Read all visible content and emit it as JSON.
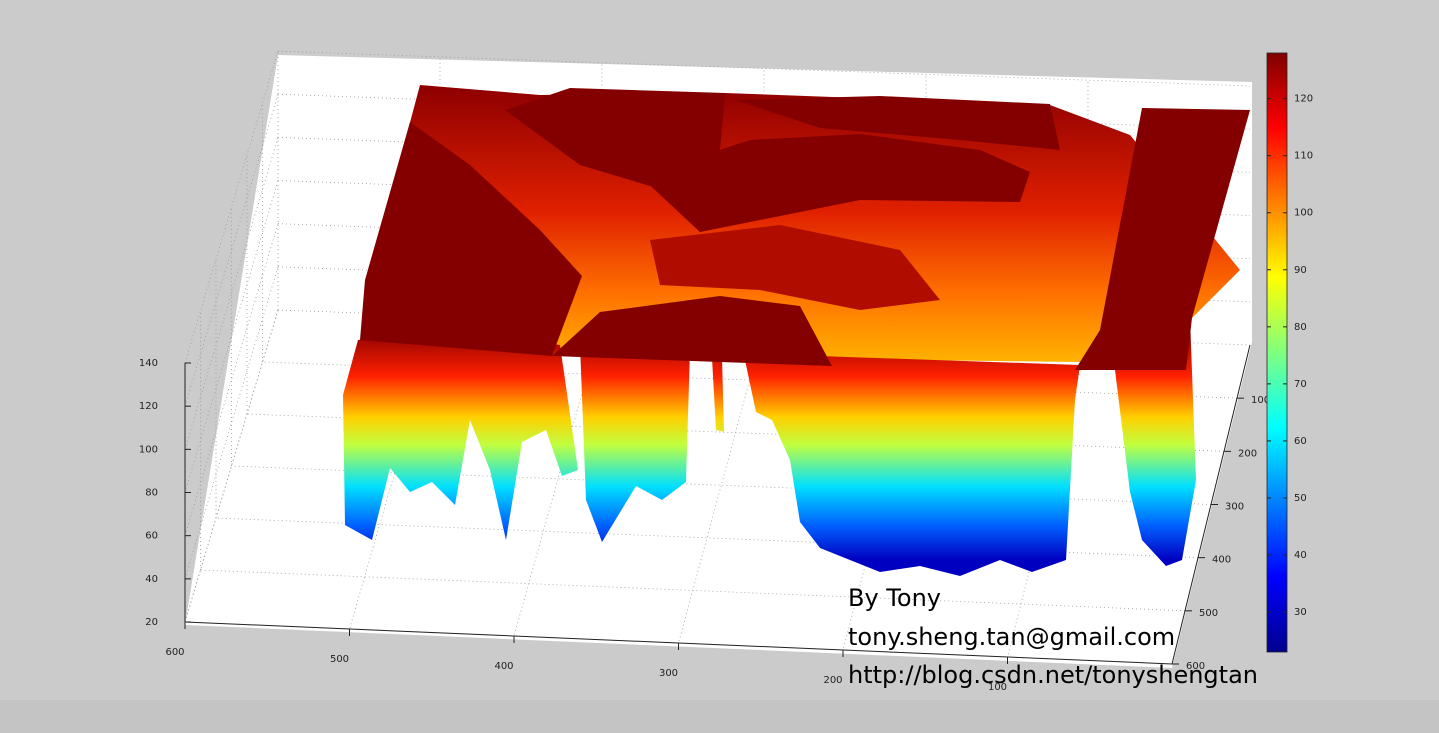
{
  "chart_data": {
    "type": "surface",
    "xlim": [
      0,
      600
    ],
    "xticks": [
      100,
      200,
      300,
      400,
      500,
      600
    ],
    "ylim": [
      0,
      600
    ],
    "yticks": [
      100,
      200,
      300,
      400,
      500,
      600
    ],
    "zlim": [
      20,
      140
    ],
    "zticks": [
      20,
      40,
      60,
      80,
      100,
      120,
      140
    ],
    "grid": true,
    "colorbar": {
      "clim": [
        23,
        128
      ],
      "ticks": [
        30,
        40,
        50,
        60,
        70,
        80,
        90,
        100,
        110,
        120
      ]
    },
    "annotations": [
      "By Tony",
      "tony.sheng.tan@gmail.com",
      "http://blog.csdn.net/tonyshengtan"
    ]
  }
}
